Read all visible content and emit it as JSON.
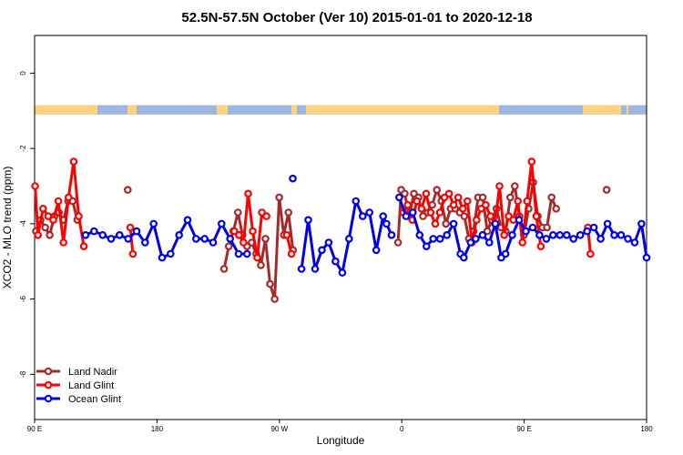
{
  "chart_data": {
    "type": "line",
    "title": "52.5N-57.5N October (Ver 10)   2015-01-01 to 2020-12-18",
    "xlabel": "Longitude",
    "ylabel": "XCO2 - MLO trend (ppm)",
    "xlim": [
      90,
      450
    ],
    "ylim": [
      -9.2,
      1.0
    ],
    "x_ticks": [
      {
        "value": 90,
        "label": "90 E"
      },
      {
        "value": 162,
        "label": "180"
      },
      {
        "value": 234,
        "label": "90 W"
      },
      {
        "value": 306,
        "label": "0"
      },
      {
        "value": 378,
        "label": "90 E"
      },
      {
        "value": 450,
        "label": "180"
      }
    ],
    "y_ticks": [
      0,
      -2,
      -4,
      -6,
      -8
    ],
    "land_ocean_band": {
      "y_top": -0.85,
      "y_bottom": -1.1,
      "land_color": "#FFD27F",
      "ocean_color": "#9FB6DD"
    },
    "legend_position": "bottom-left",
    "series": [
      {
        "name": "Land Nadir",
        "color": "#A52A2A",
        "segments": [
          [
            [
              90.8,
              -4.2
            ],
            [
              93.5,
              -3.9
            ],
            [
              96.2,
              -4.1
            ],
            [
              98.9,
              -4.3
            ],
            [
              101.6,
              -3.8
            ],
            [
              104.3,
              -3.7
            ],
            [
              107,
              -3.9
            ],
            [
              109.7,
              -3.4
            ],
            [
              112.4,
              -3.4
            ],
            [
              115.1,
              -3.9
            ]
          ],
          [
            [
              144.8,
              -3.1
            ]
          ],
          [
            [
              201.5,
              -5.2
            ],
            [
              204.2,
              -4.6
            ],
            [
              206.9,
              -4.2
            ],
            [
              209.6,
              -3.7
            ],
            [
              212.3,
              -4.3
            ],
            [
              215,
              -4.6
            ],
            [
              217.7,
              -4.5
            ],
            [
              220.4,
              -4.8
            ],
            [
              223.1,
              -5.1
            ],
            [
              225.8,
              -4.4
            ],
            [
              228.5,
              -5.6
            ],
            [
              231.2,
              -6.0
            ],
            [
              233.9,
              -3.3
            ],
            [
              236.6,
              -4.3
            ],
            [
              239.3,
              -3.7
            ],
            [
              242,
              -4.7
            ]
          ],
          [
            [
              303.8,
              -4.5
            ],
            [
              305.6,
              -3.1
            ],
            [
              307.7,
              -3.2
            ],
            [
              310.4,
              -3.8
            ],
            [
              313.1,
              -3.2
            ],
            [
              315.8,
              -3.3
            ],
            [
              318.5,
              -3.8
            ],
            [
              321.2,
              -3.7
            ],
            [
              323.9,
              -3.5
            ],
            [
              326.6,
              -3.1
            ],
            [
              329.3,
              -3.4
            ],
            [
              332,
              -4.0
            ],
            [
              334.7,
              -3.6
            ],
            [
              337.4,
              -3.6
            ],
            [
              340.1,
              -3.7
            ],
            [
              342.8,
              -3.8
            ],
            [
              345.5,
              -4.4
            ],
            [
              348.2,
              -4.2
            ],
            [
              350.9,
              -3.3
            ],
            [
              353.6,
              -3.3
            ],
            [
              356.3,
              -4.2
            ],
            [
              359,
              -3.9
            ],
            [
              361.7,
              -3.6
            ],
            [
              364.4,
              -4.1
            ],
            [
              367.1,
              -4.2
            ],
            [
              369.8,
              -3.3
            ],
            [
              372.5,
              -3.0
            ],
            [
              375.2,
              -3.8
            ],
            [
              377.9,
              -4.3
            ],
            [
              380.6,
              -3.6
            ],
            [
              383.3,
              -2.9
            ],
            [
              386,
              -3.8
            ],
            [
              388.7,
              -4.1
            ],
            [
              391.4,
              -4.1
            ],
            [
              394.1,
              -3.3
            ],
            [
              396.8,
              -3.6
            ]
          ],
          [
            [
              426.5,
              -3.1
            ]
          ]
        ]
      },
      {
        "name": "Land Glint",
        "color": "#FF0000",
        "segments": [
          [
            [
              90.3,
              -3.0
            ],
            [
              92,
              -4.3
            ],
            [
              95,
              -3.6
            ],
            [
              98,
              -3.8
            ],
            [
              101,
              -3.9
            ],
            [
              104,
              -3.4
            ],
            [
              107,
              -4.5
            ],
            [
              110,
              -3.3
            ],
            [
              113,
              -2.35
            ],
            [
              116,
              -3.8
            ],
            [
              119,
              -4.6
            ]
          ],
          [
            [
              146.3,
              -4.1
            ],
            [
              147.8,
              -4.8
            ]
          ],
          [
            [
              207.5,
              -4.2
            ],
            [
              210.2,
              -4.3
            ],
            [
              212.9,
              -4.5
            ],
            [
              215.6,
              -3.2
            ],
            [
              218.3,
              -4.2
            ],
            [
              221,
              -4.9
            ],
            [
              223.7,
              -3.7
            ],
            [
              226.4,
              -3.8
            ]
          ],
          [
            [
              238.4,
              -4.3
            ],
            [
              241.1,
              -4.8
            ]
          ],
          [
            [
              306.8,
              -3.7
            ],
            [
              309.5,
              -3.5
            ],
            [
              312.2,
              -3.9
            ],
            [
              314.9,
              -3.4
            ],
            [
              317.6,
              -3.6
            ],
            [
              320.3,
              -3.2
            ],
            [
              323,
              -3.7
            ],
            [
              325.7,
              -4.0
            ],
            [
              328.4,
              -3.7
            ],
            [
              331.1,
              -3.3
            ],
            [
              333.8,
              -3.2
            ],
            [
              336.5,
              -3.5
            ],
            [
              339.2,
              -3.3
            ],
            [
              341.9,
              -3.6
            ],
            [
              344.6,
              -3.4
            ],
            [
              347.3,
              -4.5
            ],
            [
              350,
              -3.9
            ],
            [
              352.7,
              -3.6
            ],
            [
              355.4,
              -3.5
            ],
            [
              358.1,
              -3.8
            ],
            [
              360.8,
              -4.0
            ],
            [
              363.5,
              -3.0
            ],
            [
              366.2,
              -4.3
            ],
            [
              368.9,
              -3.8
            ],
            [
              371.6,
              -3.9
            ],
            [
              374.3,
              -3.4
            ],
            [
              377,
              -4.5
            ],
            [
              379.7,
              -3.4
            ],
            [
              382.4,
              -2.35
            ],
            [
              385.1,
              -3.8
            ],
            [
              387.8,
              -4.6
            ]
          ],
          [
            [
              415.5,
              -4.1
            ],
            [
              417,
              -4.8
            ]
          ]
        ]
      },
      {
        "name": "Ocean Glint",
        "color": "#0000EE",
        "segments": [
          [
            [
              120,
              -4.3
            ],
            [
              125,
              -4.2
            ],
            [
              130,
              -4.3
            ],
            [
              135,
              -4.4
            ],
            [
              140,
              -4.3
            ],
            [
              145,
              -4.4
            ],
            [
              150,
              -4.2
            ],
            [
              155,
              -4.5
            ],
            [
              160,
              -4.0
            ],
            [
              165,
              -4.9
            ],
            [
              170,
              -4.8
            ],
            [
              175,
              -4.3
            ],
            [
              180,
              -3.9
            ],
            [
              185,
              -4.4
            ],
            [
              190,
              -4.4
            ],
            [
              195,
              -4.5
            ],
            [
              200,
              -4.0
            ],
            [
              205,
              -4.4
            ],
            [
              210,
              -4.8
            ],
            [
              215,
              -4.8
            ]
          ],
          [
            [
              241.9,
              -2.8
            ]
          ],
          [
            [
              247,
              -5.2
            ],
            [
              251,
              -3.9
            ],
            [
              255,
              -5.2
            ],
            [
              259,
              -4.7
            ],
            [
              263,
              -4.5
            ],
            [
              267,
              -5.0
            ],
            [
              271,
              -5.3
            ],
            [
              275,
              -4.4
            ],
            [
              279,
              -3.4
            ],
            [
              283,
              -3.8
            ],
            [
              287,
              -3.7
            ],
            [
              291,
              -4.7
            ],
            [
              295,
              -3.8
            ],
            [
              297,
              -4.0
            ],
            [
              300,
              -4.3
            ]
          ],
          [
            [
              304.5,
              -3.3
            ],
            [
              308.5,
              -3.8
            ],
            [
              312.5,
              -3.7
            ],
            [
              316.5,
              -4.3
            ],
            [
              320.5,
              -4.6
            ],
            [
              324.5,
              -4.4
            ],
            [
              328.5,
              -4.4
            ],
            [
              332.5,
              -4.3
            ],
            [
              336.5,
              -4.0
            ],
            [
              340.5,
              -4.8
            ],
            [
              342.5,
              -4.9
            ],
            [
              346.5,
              -4.5
            ],
            [
              349.5,
              -4.4
            ],
            [
              353.5,
              -4.3
            ],
            [
              357.5,
              -4.5
            ],
            [
              361,
              -4.0
            ],
            [
              364.5,
              -4.9
            ],
            [
              367,
              -4.8
            ],
            [
              371,
              -4.3
            ],
            [
              375,
              -3.9
            ],
            [
              379,
              -4.2
            ],
            [
              383,
              -4.1
            ],
            [
              387,
              -4.3
            ],
            [
              391,
              -4.4
            ],
            [
              395,
              -4.3
            ],
            [
              399,
              -4.3
            ],
            [
              403,
              -4.3
            ],
            [
              407,
              -4.4
            ],
            [
              411,
              -4.3
            ],
            [
              415,
              -4.2
            ],
            [
              419,
              -4.1
            ],
            [
              423,
              -4.4
            ],
            [
              427,
              -4.0
            ],
            [
              431,
              -4.3
            ],
            [
              435,
              -4.3
            ],
            [
              439,
              -4.4
            ],
            [
              443,
              -4.5
            ],
            [
              447,
              -4.0
            ],
            [
              450,
              -4.9
            ]
          ]
        ]
      }
    ]
  }
}
